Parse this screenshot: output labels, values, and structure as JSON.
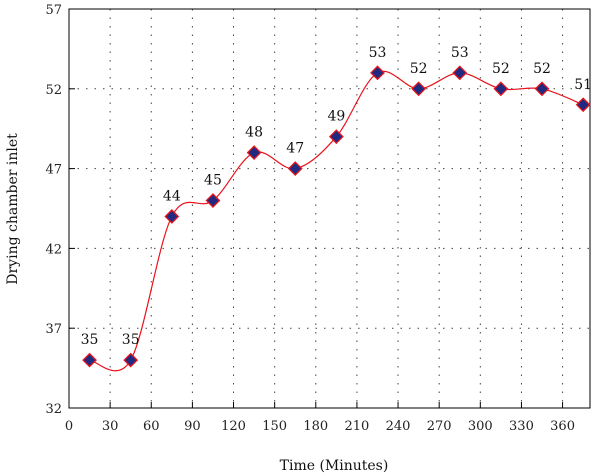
{
  "chart_data": {
    "type": "line",
    "title": "",
    "xlabel": "Time (Minutes)",
    "ylabel": "Drying chamber inlet",
    "xlim": [
      0,
      380
    ],
    "ylim": [
      32,
      57
    ],
    "x_ticks": [
      0,
      30,
      60,
      90,
      120,
      150,
      180,
      210,
      240,
      270,
      300,
      330,
      360
    ],
    "y_ticks": [
      32,
      37,
      42,
      47,
      52,
      57
    ],
    "grid": true,
    "legend": "none",
    "series": [
      {
        "x": [
          15,
          45,
          75,
          105,
          135,
          165,
          195,
          225,
          255,
          285,
          315,
          345,
          375
        ],
        "values": [
          35,
          35,
          44,
          45,
          48,
          47,
          49,
          53,
          52,
          53,
          52,
          52,
          51
        ],
        "labels": [
          "35",
          "35",
          "44",
          "45",
          "48",
          "47",
          "49",
          "53",
          "52",
          "53",
          "52",
          "52",
          "51"
        ],
        "line_color": "#e8141c",
        "marker": "diamond",
        "marker_fill": "#1f2a80",
        "marker_edge": "#e8141c"
      }
    ]
  }
}
